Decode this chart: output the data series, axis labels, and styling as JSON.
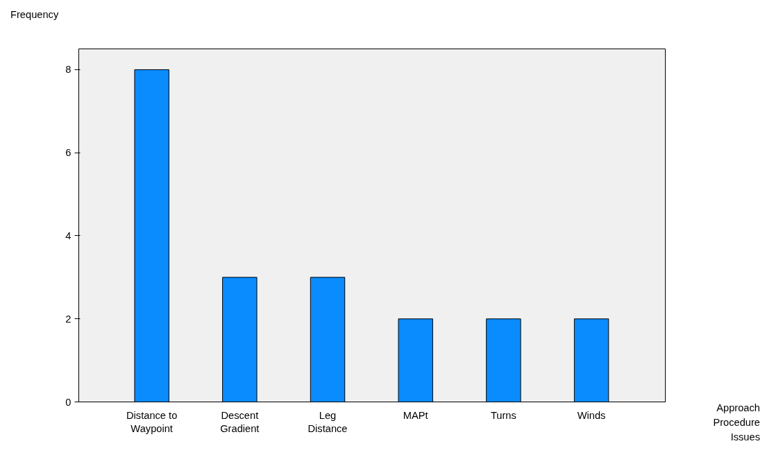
{
  "chart_data": {
    "type": "bar",
    "ylabel": "Frequency",
    "xlabel": "Approach\nProcedure\nIssues",
    "categories": [
      "Distance to\nWaypoint",
      "Descent\nGradient",
      "Leg\nDistance",
      "MAPt",
      "Turns",
      "Winds"
    ],
    "values": [
      8,
      3,
      3,
      2,
      2,
      2
    ],
    "color": "#0a8cff",
    "ylim": [
      0,
      8.5
    ],
    "yticks": [
      0,
      2,
      4,
      6,
      8
    ],
    "grid": false
  }
}
